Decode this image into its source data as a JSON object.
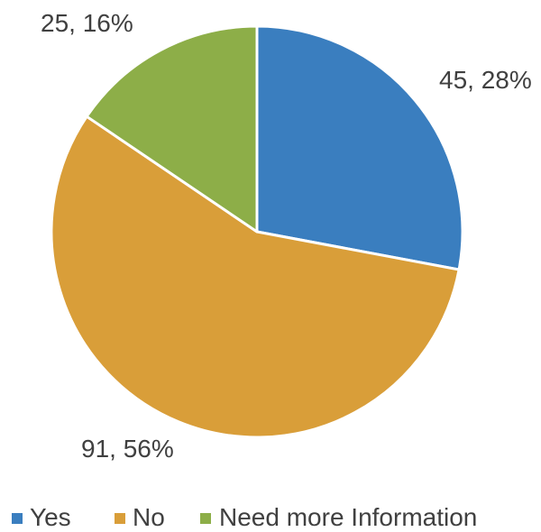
{
  "chart_data": {
    "type": "pie",
    "title": "",
    "slices": [
      {
        "name": "Yes",
        "value": 45,
        "percent": "28%",
        "label": "45, 28%",
        "color": "#3a7ebf"
      },
      {
        "name": "No",
        "value": 91,
        "percent": "56%",
        "label": "91, 56%",
        "color": "#d99e39"
      },
      {
        "name": "Need more Information",
        "value": 25,
        "percent": "16%",
        "label": "25, 16%",
        "color": "#8dae48"
      }
    ],
    "start_angle": "12 o'clock",
    "direction": "clockwise",
    "legend_position": "bottom"
  }
}
